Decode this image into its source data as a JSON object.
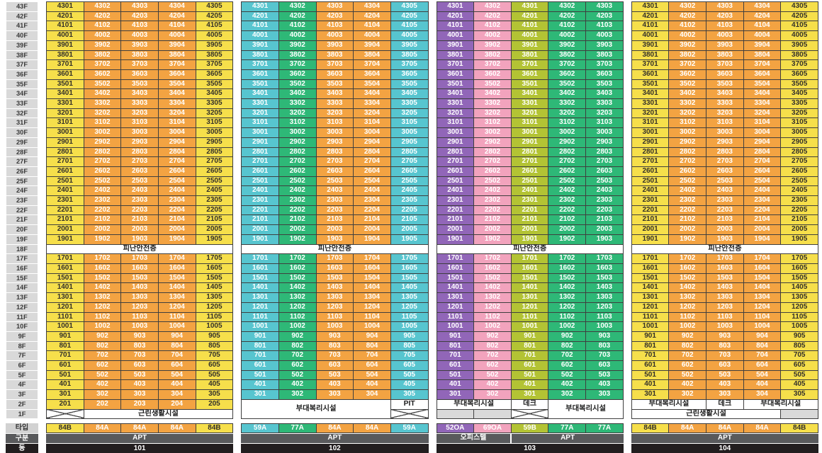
{
  "board": {
    "floor_labels": [
      "43F",
      "42F",
      "41F",
      "40F",
      "39F",
      "38F",
      "37F",
      "36F",
      "35F",
      "34F",
      "33F",
      "32F",
      "31F",
      "30F",
      "29F",
      "28F",
      "27F",
      "26F",
      "25F",
      "24F",
      "23F",
      "22F",
      "21F",
      "20F",
      "19F",
      "18F",
      "17F",
      "16F",
      "15F",
      "14F",
      "13F",
      "12F",
      "11F",
      "10F",
      "9F",
      "8F",
      "7F",
      "6F",
      "5F",
      "4F",
      "3F",
      "2F",
      "1F"
    ],
    "refuge_label": "피난안전층",
    "facilities": {
      "neighborhood": "근린생활시설",
      "welfare": "부대복리시설",
      "deck": "데크",
      "pit": "PIT"
    },
    "footer_row_labels": {
      "type": "타입",
      "category": "구분",
      "dong": "동"
    },
    "colors": {
      "yellow": "#f6df4b",
      "orange": "#f3a342",
      "teal": "#57c5cf",
      "green": "#2eb877",
      "purple": "#9166b8",
      "pink": "#f2a3bd",
      "lime": "#b3c334",
      "floor_label_bg": "#d9d9d9",
      "empty_gray": "#d9d9d9",
      "cell_border": "#3f3f3f",
      "category_bg": "#595a5c",
      "dong_bg": "#221e1f",
      "dark_text": "#33302a",
      "light_text": "#ffffff"
    },
    "unit_rows": {
      "std_upper": [
        "4301 4302 4303 4304 4305",
        "4201 4202 4203 4204 4205",
        "4101 4102 4103 4104 4105",
        "4001 4002 4003 4004 4005",
        "3901 3902 3903 3904 3905",
        "3801 3802 3803 3804 3805",
        "3701 3702 3703 3704 3705",
        "3601 3602 3603 3604 3605",
        "3501 3502 3503 3504 3505",
        "3401 3402 3403 3404 3405",
        "3301 3302 3303 3304 3305",
        "3201 3202 3203 3204 3205",
        "3101 3102 3103 3104 3105",
        "3001 3002 3003 3004 3005",
        "2901 2902 2903 2904 2905",
        "2801 2802 2803 2804 2805",
        "2701 2702 2703 2704 2705",
        "2601 2602 2603 2604 2605",
        "2501 2502 2503 2504 2505",
        "2401 2402 2403 2404 2405",
        "2301 2302 2303 2304 2305",
        "2201 2202 2203 2204 2205",
        "2101 2102 2103 2104 2105",
        "2001 2002 2003 2004 2005",
        "1901 1902 1903 1904 1905"
      ],
      "std_lower": [
        "1701 1702 1703 1704 1705",
        "1601 1602 1603 1604 1605",
        "1501 1502 1503 1504 1505",
        "1401 1402 1403 1404 1405",
        "1301 1302 1303 1304 1305",
        "1201 1202 1203 1204 1205",
        "1101 1102 1103 1104 1105",
        "1001 1002 1003 1004 1005",
        "901 902 903 904 905",
        "801 802 803 804 805",
        "701 702 703 704 705",
        "601 602 603 604 605",
        "501 502 503 504 505",
        "401 402 403 404 405",
        "301 302 303 304 305"
      ],
      "std_floor2": "201 202 203 204 205",
      "otl_upper": [
        "4301 4302 4301 4302 4303",
        "4201 4202 4201 4202 4203",
        "4101 4102 4101 4102 4103",
        "4001 4002 4001 4002 4003",
        "3901 3902 3901 3902 3903",
        "3801 3802 3801 3802 3803",
        "3701 3702 3701 3702 3703",
        "3601 3602 3601 3602 3603",
        "3501 3502 3501 3502 3503",
        "3401 3402 3401 3402 3403",
        "3301 3302 3301 3302 3303",
        "3201 3202 3201 3202 3203",
        "3101 3102 3101 3102 3103",
        "3001 3002 3001 3002 3003",
        "2901 2902 2901 2902 2903",
        "2801 2802 2801 2802 2803",
        "2701 2702 2701 2702 2703",
        "2601 2602 2601 2602 2603",
        "2501 2502 2501 2502 2503",
        "2401 2402 2401 2402 2403",
        "2301 2302 2301 2302 2303",
        "2201 2202 2201 2202 2203",
        "2101 2102 2101 2102 2103",
        "2001 2002 2001 2002 2003",
        "1901 1902 1901 1902 1903"
      ],
      "otl_lower": [
        "1701 1702 1701 1702 1703",
        "1601 1602 1601 1602 1603",
        "1501 1502 1501 1502 1503",
        "1401 1402 1401 1402 1403",
        "1301 1302 1301 1302 1303",
        "1201 1202 1201 1202 1203",
        "1101 1102 1101 1102 1103",
        "1001 1002 1001 1002 1003",
        "901 902 901 902 903",
        "801 802 801 802 803",
        "701 702 701 702 703",
        "601 602 601 602 603",
        "501 502 501 502 503",
        "401 402 401 402 403",
        "301 302 301 302 303"
      ]
    },
    "buildings": [
      {
        "dong": "101",
        "col_colors": [
          "yellow",
          "orange",
          "orange",
          "orange",
          "yellow"
        ],
        "upper": "std_upper",
        "lower": "std_lower",
        "extra_unit_rows": [
          "std_floor2"
        ],
        "bottom": [
          [
            {
              "t": "x",
              "span": 1
            },
            {
              "t": "label",
              "f": "neighborhood",
              "span": 4
            }
          ]
        ],
        "types": [
          {
            "label": "84B",
            "color": "yellow"
          },
          {
            "label": "84A",
            "color": "orange"
          },
          {
            "label": "84A",
            "color": "orange"
          },
          {
            "label": "84A",
            "color": "orange"
          },
          {
            "label": "84B",
            "color": "yellow"
          }
        ],
        "categories": [
          {
            "label": "APT",
            "span": 5
          }
        ]
      },
      {
        "dong": "102",
        "col_colors": [
          "teal",
          "green",
          "orange",
          "orange",
          "teal"
        ],
        "upper": "std_upper",
        "lower": "std_lower",
        "extra_unit_rows": [],
        "bottom": [
          [
            {
              "t": "label",
              "f": "welfare",
              "span": 4,
              "rowspan": 2
            },
            {
              "t": "label",
              "f": "pit",
              "span": 1
            }
          ],
          [
            {
              "t": "x",
              "span": 1
            }
          ]
        ],
        "types": [
          {
            "label": "59A",
            "color": "teal"
          },
          {
            "label": "77A",
            "color": "green"
          },
          {
            "label": "84A",
            "color": "orange"
          },
          {
            "label": "84A",
            "color": "orange"
          },
          {
            "label": "59A",
            "color": "teal"
          }
        ],
        "categories": [
          {
            "label": "APT",
            "span": 5
          }
        ]
      },
      {
        "dong": "103",
        "col_colors": [
          "purple",
          "pink",
          "lime",
          "green",
          "green"
        ],
        "upper": "otl_upper",
        "lower": "otl_lower",
        "extra_unit_rows": [],
        "bottom": [
          [
            {
              "t": "label",
              "f": "welfare",
              "span": 2
            },
            {
              "t": "label",
              "f": "deck",
              "span": 1
            },
            {
              "t": "label",
              "f": "welfare",
              "span": 2,
              "rowspan": 2
            }
          ],
          [
            {
              "t": "gray",
              "span": 1
            },
            {
              "t": "gray",
              "span": 1
            },
            {
              "t": "x",
              "span": 1
            }
          ]
        ],
        "types": [
          {
            "label": "52OA",
            "color": "purple"
          },
          {
            "label": "69OA",
            "color": "pink"
          },
          {
            "label": "59B",
            "color": "lime"
          },
          {
            "label": "77A",
            "color": "green"
          },
          {
            "label": "77A",
            "color": "green"
          }
        ],
        "categories": [
          {
            "label": "오피스텔",
            "span": 2
          },
          {
            "label": "APT",
            "span": 3
          }
        ]
      },
      {
        "dong": "104",
        "col_colors": [
          "yellow",
          "orange",
          "orange",
          "orange",
          "yellow"
        ],
        "upper": "std_upper",
        "lower": "std_lower",
        "extra_unit_rows": [],
        "bottom": [
          [
            {
              "t": "label",
              "f": "welfare",
              "span": 2
            },
            {
              "t": "label",
              "f": "deck",
              "span": 1
            },
            {
              "t": "label",
              "f": "welfare",
              "span": 2
            }
          ],
          [
            {
              "t": "label",
              "f": "neighborhood",
              "span": 4
            },
            {
              "t": "gray",
              "span": 1
            }
          ]
        ],
        "types": [
          {
            "label": "84B",
            "color": "yellow"
          },
          {
            "label": "84A",
            "color": "orange"
          },
          {
            "label": "84A",
            "color": "orange"
          },
          {
            "label": "84A",
            "color": "orange"
          },
          {
            "label": "84B",
            "color": "yellow"
          }
        ],
        "categories": [
          {
            "label": "APT",
            "span": 5
          }
        ]
      }
    ]
  }
}
